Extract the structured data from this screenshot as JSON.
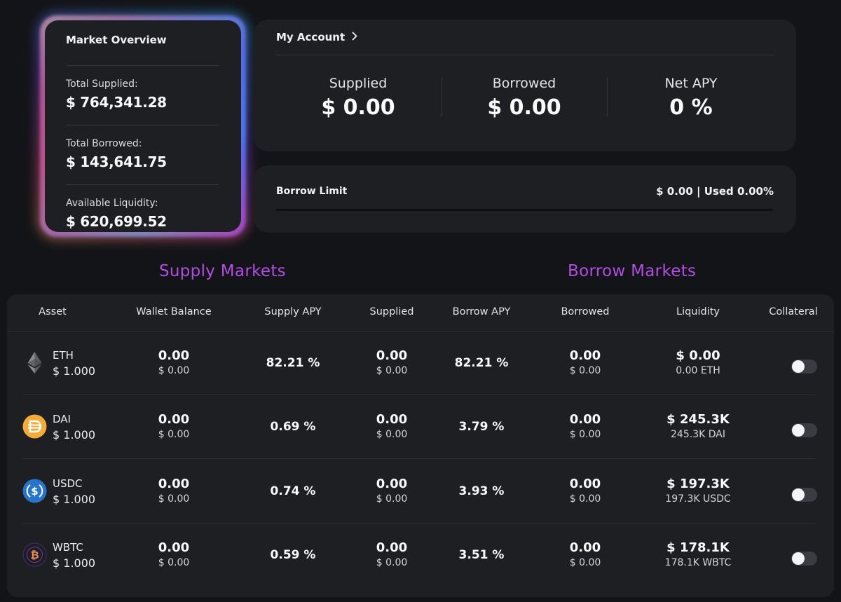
{
  "market_overview": {
    "title": "Market Overview",
    "items": [
      {
        "label": "Total Supplied:",
        "value": "$ 764,341.28"
      },
      {
        "label": "Total Borrowed:",
        "value": "$ 143,641.75"
      },
      {
        "label": "Available Liquidity:",
        "value": "$ 620,699.52"
      }
    ]
  },
  "account": {
    "title": "My Account",
    "chevron": "›",
    "stats": [
      {
        "label": "Supplied",
        "value": "$ 0.00"
      },
      {
        "label": "Borrowed",
        "value": "$ 0.00"
      },
      {
        "label": "Net APY",
        "value": "0 %"
      }
    ]
  },
  "borrow_limit": {
    "label": "Borrow Limit",
    "value": "$ 0.00 | Used 0.00%",
    "used_fraction": 0
  },
  "sections": {
    "supply_title": "Supply Markets",
    "borrow_title": "Borrow Markets"
  },
  "table": {
    "headers": [
      "Asset",
      "Wallet Balance",
      "Supply APY",
      "Supplied",
      "Borrow APY",
      "Borrowed",
      "Liquidity",
      "Collateral"
    ],
    "rows": [
      {
        "icon": "eth-icon",
        "name": "ETH",
        "price": "$ 1.000",
        "wallet": "0.00",
        "wallet_usd": "$ 0.00",
        "supply_apy": "82.21 %",
        "supplied": "0.00",
        "supplied_usd": "$ 0.00",
        "borrow_apy": "82.21 %",
        "borrowed": "0.00",
        "borrowed_usd": "$ 0.00",
        "liquidity": "$ 0.00",
        "liquidity_sub": "0.00 ETH",
        "collateral": false
      },
      {
        "icon": "dai-icon",
        "name": "DAI",
        "price": "$ 1.000",
        "wallet": "0.00",
        "wallet_usd": "$ 0.00",
        "supply_apy": "0.69 %",
        "supplied": "0.00",
        "supplied_usd": "$ 0.00",
        "borrow_apy": "3.79 %",
        "borrowed": "0.00",
        "borrowed_usd": "$ 0.00",
        "liquidity": "$ 245.3K",
        "liquidity_sub": "245.3K DAI",
        "collateral": false
      },
      {
        "icon": "usdc-icon",
        "name": "USDC",
        "price": "$ 1.000",
        "wallet": "0.00",
        "wallet_usd": "$ 0.00",
        "supply_apy": "0.74 %",
        "supplied": "0.00",
        "supplied_usd": "$ 0.00",
        "borrow_apy": "3.93 %",
        "borrowed": "0.00",
        "borrowed_usd": "$ 0.00",
        "liquidity": "$ 197.3K",
        "liquidity_sub": "197.3K USDC",
        "collateral": false
      },
      {
        "icon": "wbtc-icon",
        "name": "WBTC",
        "price": "$ 1.000",
        "wallet": "0.00",
        "wallet_usd": "$ 0.00",
        "supply_apy": "0.59 %",
        "supplied": "0.00",
        "supplied_usd": "$ 0.00",
        "borrow_apy": "3.51 %",
        "borrowed": "0.00",
        "borrowed_usd": "$ 0.00",
        "liquidity": "$ 178.1K",
        "liquidity_sub": "178.1K WBTC",
        "collateral": false
      }
    ]
  },
  "colors": {
    "background": "#131417",
    "card": "#1d1f23",
    "section_title": "#b14de2",
    "dai": "#f5ac37",
    "usdc": "#2775ca",
    "wbtc": "#f09242"
  }
}
